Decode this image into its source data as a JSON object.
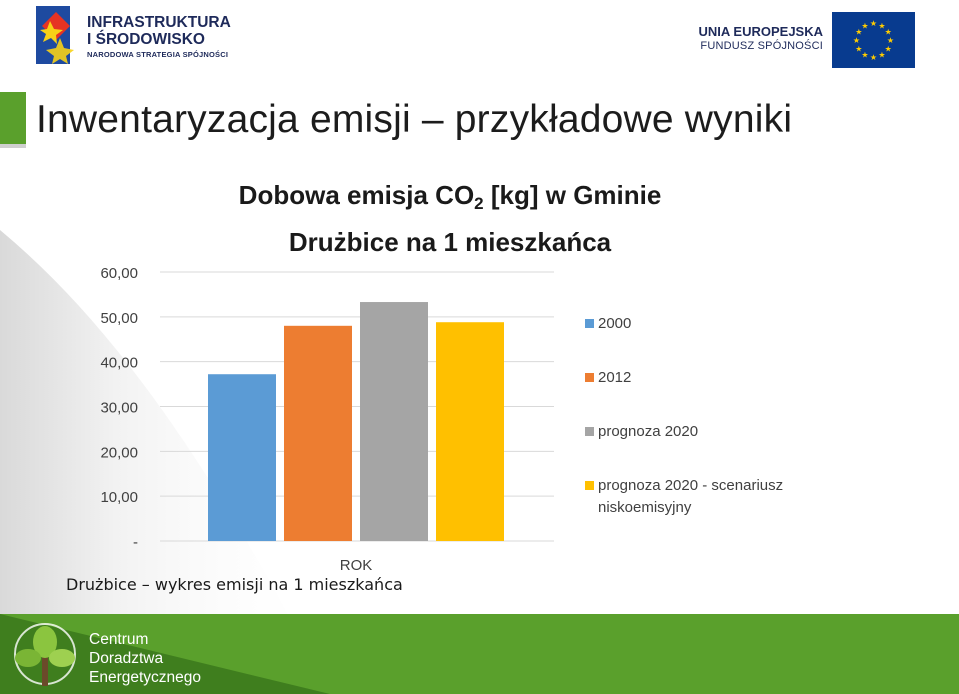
{
  "header": {
    "logo_left": {
      "line1": "INFRASTRUKTURA",
      "line2": "I ŚRODOWISKO",
      "line3": "NARODOWA STRATEGIA SPÓJNOŚCI"
    },
    "logo_right": {
      "line1": "UNIA EUROPEJSKA",
      "line2": "FUNDUSZ SPÓJNOŚCI"
    }
  },
  "slide": {
    "title": "Inwentaryzacja emisji – przykładowe wyniki",
    "caption": "Drużbice – wykres emisji na 1 mieszkańca"
  },
  "chart_data": {
    "type": "bar",
    "title_line1_pre": "Dobowa emisja CO",
    "title_sub": "2",
    "title_line1_post": " [kg] w Gminie",
    "title_line2": "Drużbice na 1 mieszkańca",
    "xlabel": "ROK",
    "ylabel": "",
    "ylim": [
      0,
      60
    ],
    "yticks": [
      "-",
      "10,00",
      "20,00",
      "30,00",
      "40,00",
      "50,00",
      "60,00"
    ],
    "ytick_values": [
      0,
      10,
      20,
      30,
      40,
      50,
      60
    ],
    "grid": true,
    "legend_position": "right",
    "series": [
      {
        "name": "2000",
        "value": 37.2,
        "color": "#5b9bd5"
      },
      {
        "name": "2012",
        "value": 48.0,
        "color": "#ed7d31"
      },
      {
        "name": "prognoza 2020",
        "value": 53.3,
        "color": "#a5a5a5"
      },
      {
        "name": "prognoza 2020 - scenariusz niskoemisyjny",
        "value": 48.8,
        "color": "#ffc000"
      }
    ]
  },
  "footer": {
    "line1": "Centrum",
    "line2": "Doradztwa",
    "line3": "Energetycznego",
    "accent": "#5aa02c"
  }
}
